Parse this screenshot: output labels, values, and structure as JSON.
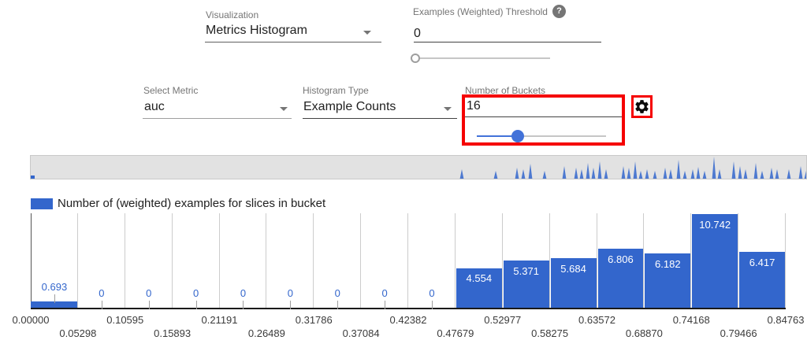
{
  "controls": {
    "visualization": {
      "label": "Visualization",
      "value": "Metrics Histogram"
    },
    "threshold": {
      "label": "Examples (Weighted) Threshold",
      "value": "0",
      "help_glyph": "?",
      "slider_percent": 0
    },
    "select_metric": {
      "label": "Select Metric",
      "value": "auc"
    },
    "histogram_type": {
      "label": "Histogram Type",
      "value": "Example Counts"
    },
    "num_buckets": {
      "label": "Number of Buckets",
      "value": "16",
      "slider_percent": 32
    }
  },
  "icons": {
    "gear": "settings-gear",
    "help": "question-mark"
  },
  "colors": {
    "bar_blue": "#3366cc",
    "slider_blue": "#4272d9",
    "highlight_red": "#f50202",
    "strip_bg": "#e2e2e2"
  },
  "legend": {
    "label": "Number of (weighted) examples for slices in bucket",
    "color": "#3366cc"
  },
  "chart_data": {
    "type": "bar",
    "title": "Number of (weighted) examples for slices in bucket",
    "xlabel": "",
    "ylabel": "",
    "ylim": [
      0,
      11
    ],
    "grid": true,
    "legend_position": "top-left",
    "bucket_edges": [
      "0.00000",
      "0.05298",
      "0.10595",
      "0.15893",
      "0.21191",
      "0.26489",
      "0.31786",
      "0.37084",
      "0.42382",
      "0.47679",
      "0.52977",
      "0.58275",
      "0.63572",
      "0.68870",
      "0.74168",
      "0.79466",
      "0.84763"
    ],
    "values": [
      0.693,
      0,
      0,
      0,
      0,
      0,
      0,
      0,
      0,
      4.554,
      5.371,
      5.684,
      6.806,
      6.182,
      10.742,
      6.417
    ],
    "value_labels": [
      "0.693",
      "0",
      "0",
      "0",
      "0",
      "0",
      "0",
      "0",
      "0",
      "4.554",
      "5.371",
      "5.684",
      "6.806",
      "6.182",
      "10.742",
      "6.417"
    ]
  },
  "overview_strip": {
    "left_marker": {
      "x": 0,
      "w": 5,
      "h": 4
    },
    "spikes": [
      [
        547,
        12
      ],
      [
        590,
        10
      ],
      [
        617,
        14
      ],
      [
        625,
        12
      ],
      [
        634,
        19
      ],
      [
        652,
        10
      ],
      [
        677,
        16
      ],
      [
        692,
        14
      ],
      [
        699,
        12
      ],
      [
        707,
        20
      ],
      [
        714,
        14
      ],
      [
        722,
        22
      ],
      [
        730,
        12
      ],
      [
        752,
        16
      ],
      [
        759,
        14
      ],
      [
        767,
        22
      ],
      [
        774,
        10
      ],
      [
        782,
        12
      ],
      [
        792,
        10
      ],
      [
        805,
        14
      ],
      [
        812,
        12
      ],
      [
        822,
        24
      ],
      [
        830,
        10
      ],
      [
        840,
        12
      ],
      [
        847,
        15
      ],
      [
        855,
        10
      ],
      [
        867,
        28
      ],
      [
        874,
        12
      ],
      [
        892,
        22
      ],
      [
        900,
        16
      ],
      [
        907,
        12
      ],
      [
        920,
        20
      ],
      [
        928,
        10
      ],
      [
        940,
        14
      ],
      [
        947,
        12
      ],
      [
        962,
        12
      ],
      [
        977,
        16
      ],
      [
        984,
        10
      ]
    ]
  }
}
